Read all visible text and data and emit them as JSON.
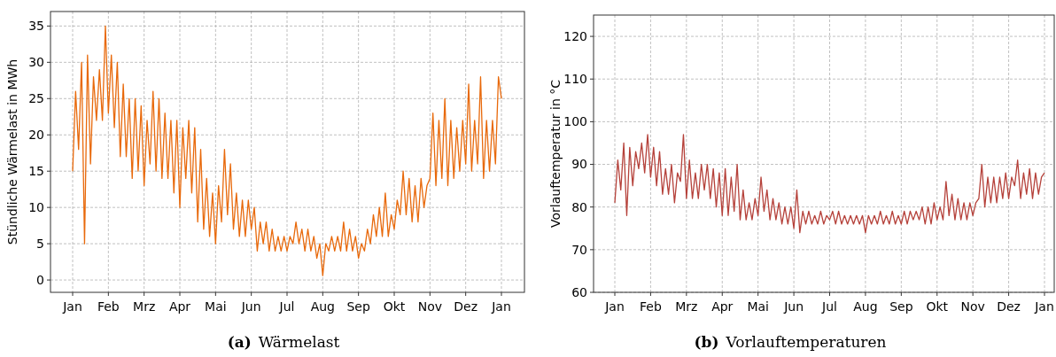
{
  "chart_data": [
    {
      "type": "line",
      "title": "(a) Wärmelast",
      "ylabel": "Stündliche Wärmelast in MWh",
      "grid": true,
      "ylim": [
        -1.7,
        37
      ],
      "yticks": [
        0,
        5,
        10,
        15,
        20,
        25,
        30,
        35
      ],
      "categories": [
        "Jan",
        null,
        null,
        null,
        null,
        null,
        null,
        null,
        null,
        null,
        null,
        null,
        "Feb",
        null,
        null,
        null,
        null,
        null,
        null,
        null,
        null,
        null,
        null,
        null,
        "Mrz",
        null,
        null,
        null,
        null,
        null,
        null,
        null,
        null,
        null,
        null,
        null,
        "Apr",
        null,
        null,
        null,
        null,
        null,
        null,
        null,
        null,
        null,
        null,
        null,
        "Mai",
        null,
        null,
        null,
        null,
        null,
        null,
        null,
        null,
        null,
        null,
        null,
        "Jun",
        null,
        null,
        null,
        null,
        null,
        null,
        null,
        null,
        null,
        null,
        null,
        "Jul",
        null,
        null,
        null,
        null,
        null,
        null,
        null,
        null,
        null,
        null,
        null,
        "Aug",
        null,
        null,
        null,
        null,
        null,
        null,
        null,
        null,
        null,
        null,
        null,
        "Sep",
        null,
        null,
        null,
        null,
        null,
        null,
        null,
        null,
        null,
        null,
        null,
        "Okt",
        null,
        null,
        null,
        null,
        null,
        null,
        null,
        null,
        null,
        null,
        null,
        "Nov",
        null,
        null,
        null,
        null,
        null,
        null,
        null,
        null,
        null,
        null,
        null,
        "Dez",
        null,
        null,
        null,
        null,
        null,
        null,
        null,
        null,
        null,
        null,
        null,
        "Jan"
      ],
      "series": [
        {
          "color": "#e8690b",
          "values": [
            15,
            26,
            18,
            30,
            5,
            31,
            16,
            28,
            22,
            29,
            22,
            35,
            23,
            31,
            21,
            30,
            17,
            27,
            17,
            25,
            14,
            25,
            15,
            24,
            13,
            22,
            16,
            26,
            15,
            25,
            14,
            23,
            14,
            22,
            12,
            22,
            10,
            21,
            14,
            22,
            12,
            21,
            8,
            18,
            7,
            14,
            6,
            12,
            5,
            13,
            8,
            18,
            9,
            16,
            7,
            12,
            6,
            11,
            6,
            11,
            7,
            10,
            4,
            8,
            5,
            8,
            4,
            7,
            4,
            6,
            4,
            6,
            4,
            6,
            5,
            8,
            5,
            7,
            4,
            7,
            4,
            6,
            3,
            5,
            0.6,
            5,
            4,
            6,
            4,
            6,
            4,
            8,
            4,
            7,
            4,
            6,
            3,
            5,
            4,
            7,
            5,
            9,
            6,
            10,
            6,
            12,
            6,
            9,
            7,
            11,
            9,
            15,
            9,
            14,
            8,
            13,
            8,
            14,
            10,
            13,
            14,
            23,
            13,
            22,
            14,
            25,
            13,
            22,
            14,
            21,
            15,
            22,
            16,
            27,
            15,
            22,
            16,
            28,
            14,
            22,
            15,
            22,
            16,
            28,
            25
          ]
        }
      ]
    },
    {
      "type": "line",
      "title": "(b) Vorlauftemperaturen",
      "ylabel": "Vorlauftemperatur in °C",
      "grid": true,
      "ylim": [
        60,
        125
      ],
      "yticks": [
        60,
        70,
        80,
        90,
        100,
        110,
        120
      ],
      "categories": [
        "Jan",
        null,
        null,
        null,
        null,
        null,
        null,
        null,
        null,
        null,
        null,
        null,
        "Feb",
        null,
        null,
        null,
        null,
        null,
        null,
        null,
        null,
        null,
        null,
        null,
        "Mrz",
        null,
        null,
        null,
        null,
        null,
        null,
        null,
        null,
        null,
        null,
        null,
        "Apr",
        null,
        null,
        null,
        null,
        null,
        null,
        null,
        null,
        null,
        null,
        null,
        "Mai",
        null,
        null,
        null,
        null,
        null,
        null,
        null,
        null,
        null,
        null,
        null,
        "Jun",
        null,
        null,
        null,
        null,
        null,
        null,
        null,
        null,
        null,
        null,
        null,
        "Jul",
        null,
        null,
        null,
        null,
        null,
        null,
        null,
        null,
        null,
        null,
        null,
        "Aug",
        null,
        null,
        null,
        null,
        null,
        null,
        null,
        null,
        null,
        null,
        null,
        "Sep",
        null,
        null,
        null,
        null,
        null,
        null,
        null,
        null,
        null,
        null,
        null,
        "Okt",
        null,
        null,
        null,
        null,
        null,
        null,
        null,
        null,
        null,
        null,
        null,
        "Nov",
        null,
        null,
        null,
        null,
        null,
        null,
        null,
        null,
        null,
        null,
        null,
        "Dez",
        null,
        null,
        null,
        null,
        null,
        null,
        null,
        null,
        null,
        null,
        null,
        "Jan"
      ],
      "series": [
        {
          "color": "#b5413a",
          "values": [
            81,
            91,
            84,
            95,
            78,
            94,
            85,
            93,
            89,
            95,
            88,
            97,
            87,
            94,
            85,
            93,
            83,
            89,
            83,
            90,
            81,
            88,
            86,
            97,
            82,
            91,
            82,
            88,
            82,
            90,
            84,
            90,
            82,
            89,
            80,
            88,
            78,
            89,
            78,
            87,
            79,
            90,
            77,
            84,
            77,
            81,
            77,
            82,
            78,
            87,
            79,
            84,
            77,
            82,
            77,
            81,
            76,
            80,
            76,
            80,
            75,
            84,
            74,
            79,
            76,
            79,
            76,
            78,
            76,
            79,
            76,
            78,
            77,
            79,
            76,
            79,
            76,
            78,
            76,
            78,
            76,
            78,
            76,
            78,
            74,
            78,
            76,
            78,
            76,
            79,
            76,
            78,
            76,
            79,
            76,
            78,
            76,
            79,
            76,
            79,
            77,
            79,
            77,
            80,
            76,
            80,
            76,
            81,
            77,
            80,
            77,
            86,
            78,
            83,
            77,
            82,
            77,
            81,
            77,
            81,
            78,
            81,
            82,
            90,
            80,
            87,
            81,
            87,
            81,
            87,
            82,
            88,
            82,
            87,
            85,
            91,
            82,
            88,
            83,
            89,
            82,
            88,
            83,
            87,
            88
          ]
        }
      ]
    }
  ]
}
